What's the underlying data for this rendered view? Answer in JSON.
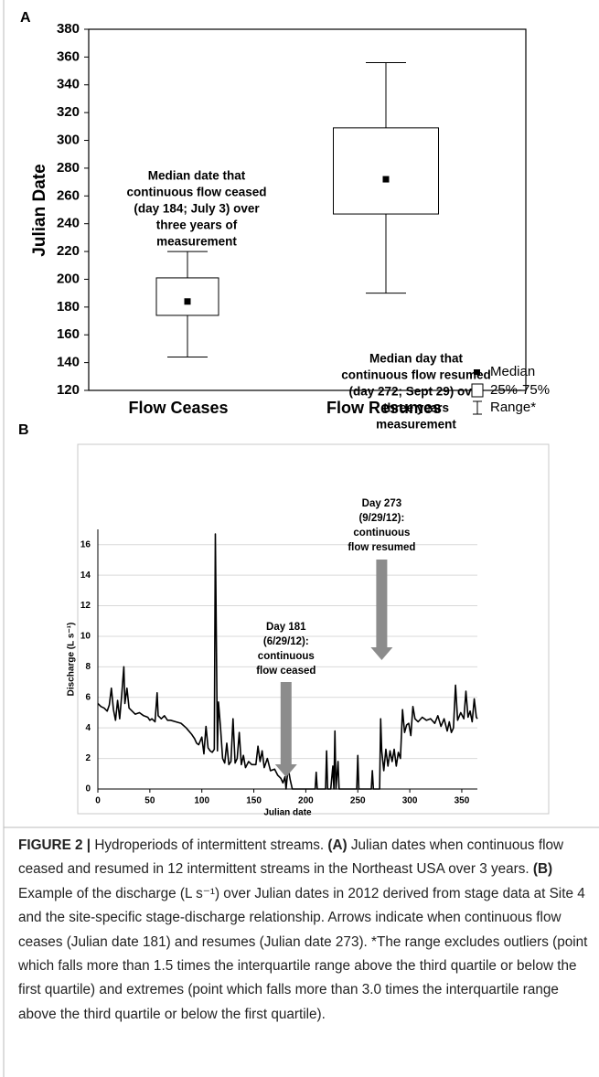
{
  "chart_data": [
    {
      "type": "box",
      "panel_label": "A",
      "ylabel": "Julian Date",
      "categories": [
        "Flow Ceases",
        "Flow Resumes"
      ],
      "min": [
        144,
        190
      ],
      "q1": [
        174,
        247
      ],
      "median": [
        184,
        272
      ],
      "q3": [
        201,
        309
      ],
      "max": [
        220,
        356
      ],
      "ylim": [
        120,
        380
      ],
      "yticks": [
        120,
        140,
        160,
        180,
        200,
        220,
        240,
        260,
        280,
        300,
        320,
        340,
        360,
        380
      ],
      "annotations": [
        {
          "lines": [
            "Median date that",
            "continuous flow ceased",
            "(day 184; July 3) over",
            "three years of",
            "measurement"
          ]
        },
        {
          "lines": [
            "Median day that",
            "continuous flow resumed",
            "(day 272; Sept 29) over",
            "three years",
            "measurement"
          ]
        }
      ],
      "legend": [
        "Median",
        "25%-75%",
        "Range*"
      ]
    },
    {
      "type": "line",
      "panel_label": "B",
      "xlabel": "Julian date",
      "ylabel": "Discharge (L s⁻¹)",
      "color": "#000000",
      "x": [
        0,
        3,
        6,
        9,
        11,
        13,
        15,
        17,
        19,
        21,
        23,
        25,
        26,
        28,
        30,
        33,
        36,
        40,
        44,
        48,
        50,
        52,
        55,
        57,
        58,
        61,
        64,
        67,
        70,
        75,
        80,
        85,
        90,
        93,
        95,
        97,
        100,
        102,
        104,
        106,
        108,
        110,
        112,
        113,
        115,
        116,
        118,
        120,
        122,
        124,
        126,
        128,
        130,
        132,
        134,
        136,
        138,
        140,
        142,
        145,
        148,
        152,
        154,
        156,
        158,
        160,
        163,
        166,
        170,
        173,
        176,
        178,
        180,
        181,
        183,
        185,
        187,
        200,
        209,
        210,
        211,
        219,
        220,
        221,
        224,
        226,
        227,
        228,
        229,
        231,
        232,
        249,
        250,
        251,
        263,
        264,
        265,
        271,
        272,
        273,
        275,
        277,
        279,
        281,
        283,
        285,
        287,
        289,
        291,
        293,
        295,
        297,
        299,
        301,
        303,
        305,
        308,
        312,
        316,
        320,
        324,
        327,
        330,
        333,
        336,
        338,
        340,
        342,
        344,
        346,
        349,
        352,
        354,
        356,
        358,
        360,
        362,
        364,
        365
      ],
      "values": [
        5.6,
        5.4,
        5.3,
        5.1,
        5.5,
        6.6,
        5.2,
        4.5,
        5.8,
        4.6,
        6.2,
        8.0,
        5.6,
        6.6,
        5.3,
        5.1,
        4.9,
        5.0,
        4.8,
        4.7,
        4.5,
        4.6,
        4.4,
        6.3,
        4.8,
        4.6,
        4.8,
        4.5,
        4.5,
        4.4,
        4.3,
        4.0,
        3.6,
        3.3,
        3.0,
        2.9,
        3.4,
        2.3,
        4.1,
        2.7,
        2.5,
        2.4,
        2.6,
        16.7,
        2.5,
        5.7,
        4.0,
        2.0,
        1.7,
        3.0,
        1.6,
        1.8,
        4.6,
        1.7,
        2.0,
        3.7,
        1.6,
        2.2,
        1.4,
        1.8,
        1.6,
        1.6,
        2.8,
        1.8,
        2.5,
        1.4,
        2.0,
        1.2,
        1.3,
        0.9,
        0.7,
        0.4,
        0.8,
        0,
        1.4,
        0.6,
        0,
        0,
        0,
        1.1,
        0,
        0,
        2.5,
        0,
        0,
        1.5,
        0,
        3.8,
        0,
        1.8,
        0,
        0,
        2.2,
        0,
        0,
        1.2,
        0,
        0,
        4.6,
        2.5,
        1.2,
        2.6,
        1.5,
        2.5,
        1.8,
        2.6,
        1.5,
        2.4,
        2.0,
        5.2,
        3.7,
        4.2,
        4.3,
        3.5,
        5.4,
        4.6,
        4.4,
        4.7,
        4.5,
        4.6,
        4.3,
        4.8,
        4.1,
        4.6,
        3.8,
        4.4,
        3.7,
        4.0,
        6.8,
        4.5,
        5.0,
        4.6,
        6.4,
        4.7,
        5.1,
        4.4,
        5.9,
        4.7,
        4.6
      ],
      "xlim": [
        0,
        365
      ],
      "xticks": [
        0,
        50,
        100,
        150,
        200,
        250,
        300,
        350
      ],
      "ylim": [
        0,
        17
      ],
      "yticks": [
        0,
        2,
        4,
        6,
        8,
        10,
        12,
        14,
        16
      ],
      "grid": true,
      "arrow_color": "#8c8c8c",
      "annotations": [
        {
          "x": 181,
          "lines": [
            "Day 181",
            "(6/29/12):",
            "continuous",
            "flow ceased"
          ]
        },
        {
          "x": 273,
          "lines": [
            "Day 273",
            "(9/29/12):",
            "continuous",
            "flow resumed"
          ]
        }
      ]
    }
  ],
  "caption": [
    {
      "text": "FIGURE 2 |",
      "bold": true
    },
    {
      "text": "Hydroperiods of intermittent streams."
    },
    {
      "text": "(A)",
      "bold": true
    },
    {
      "text": "Julian dates when continuous flow ceased and resumed in 12 intermittent streams in the Northeast USA over 3 years."
    },
    {
      "text": "(B)",
      "bold": true
    },
    {
      "text": "Example of the discharge (L s⁻¹) over Julian dates in 2012 derived from stage data at Site 4 and the site-specific stage-discharge relationship. Arrows indicate when continuous flow ceases (Julian date 181) and resumes (Julian date 273). *The range excludes outliers (point which falls more than 1.5 times the interquartile range above the third quartile or below the first quartile) and extremes (point which falls more than 3.0 times the interquartile range above the third quartile or below the first quartile)."
    }
  ]
}
